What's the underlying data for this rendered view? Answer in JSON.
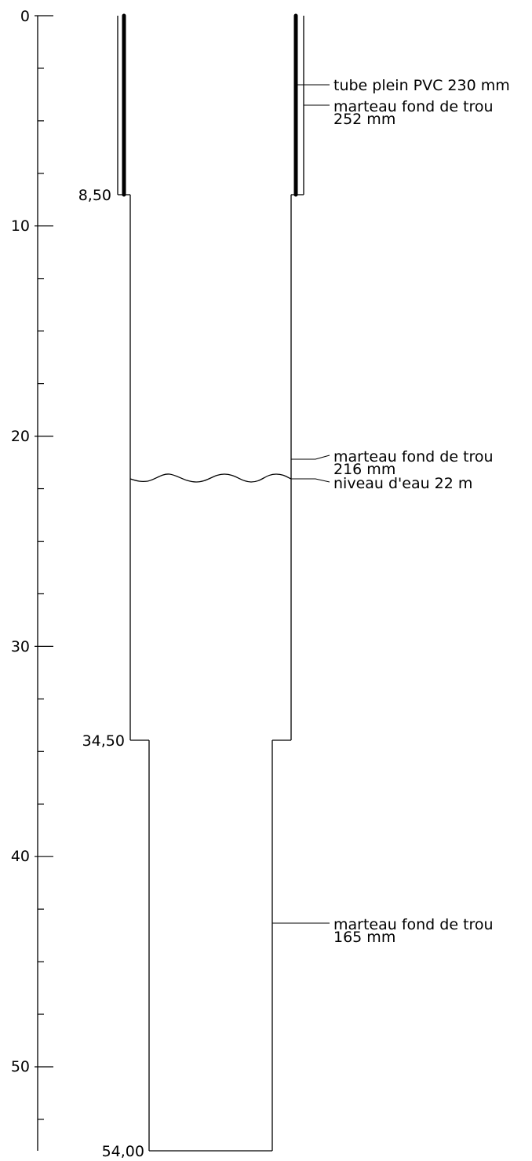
{
  "diagram": {
    "axis": {
      "min": 0,
      "max": 54,
      "major_step": 10,
      "minor_step": 2.5,
      "tick_labels": [
        "0",
        "10",
        "20",
        "30",
        "40",
        "50"
      ]
    },
    "sections": [
      {
        "from": 0,
        "to": 8.5,
        "kind": "casing"
      },
      {
        "from": 8.5,
        "to": 34.5,
        "kind": "hole",
        "diameter_mm": 216
      },
      {
        "from": 34.5,
        "to": 54,
        "kind": "hole",
        "diameter_mm": 165
      }
    ],
    "depth_labels": [
      {
        "depth": 8.5,
        "text": "8,50"
      },
      {
        "depth": 34.5,
        "text": "34,50"
      },
      {
        "depth": 54,
        "text": "54,00"
      }
    ],
    "water_level": {
      "depth": 22,
      "text": "niveau d'eau 22 m"
    },
    "annotations": {
      "casing": {
        "line1": "tube plein PVC 230 mm"
      },
      "hammer_252": {
        "line1": "marteau fond de trou",
        "line2": "252 mm"
      },
      "hammer_216": {
        "line1": "marteau fond de trou",
        "line2": "216 mm"
      },
      "hammer_165": {
        "line1": "marteau fond de trou",
        "line2": "165 mm"
      }
    }
  }
}
